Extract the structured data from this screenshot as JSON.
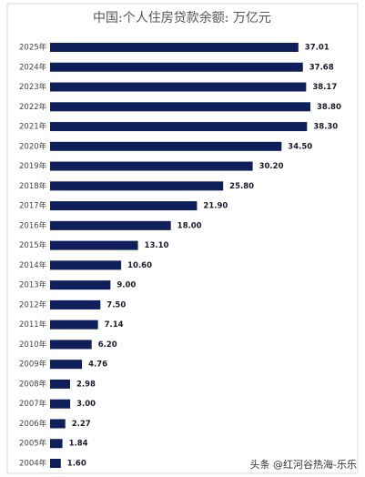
{
  "chart_data": {
    "type": "bar",
    "orientation": "horizontal",
    "title": "中国:个人住房贷款余额: 万亿元",
    "categories": [
      "2025年",
      "2024年",
      "2023年",
      "2022年",
      "2021年",
      "2020年",
      "2019年",
      "2018年",
      "2017年",
      "2016年",
      "2015年",
      "2014年",
      "2013年",
      "2012年",
      "2011年",
      "2010年",
      "2009年",
      "2008年",
      "2007年",
      "2006年",
      "2005年",
      "2004年"
    ],
    "values": [
      37.01,
      37.68,
      38.17,
      38.8,
      38.3,
      34.5,
      30.2,
      25.8,
      21.9,
      18,
      13.1,
      10.6,
      9,
      7.5,
      7.14,
      6.2,
      4.76,
      2.98,
      3,
      2.27,
      1.84,
      1.6
    ],
    "value_labels": [
      "37.01",
      "37.68",
      "38.17",
      "38.80",
      "38.30",
      "34.50",
      "30.20",
      "25.80",
      "21.90",
      "18.00",
      "13.10",
      "10.60",
      "9.00",
      "7.50",
      "7.14",
      "6.20",
      "4.76",
      "2.98",
      "3.00",
      "2.27",
      "1.84",
      "1.60"
    ],
    "color": "#0f1f5c",
    "watermark": "头条 @红河谷热海-乐乐"
  }
}
